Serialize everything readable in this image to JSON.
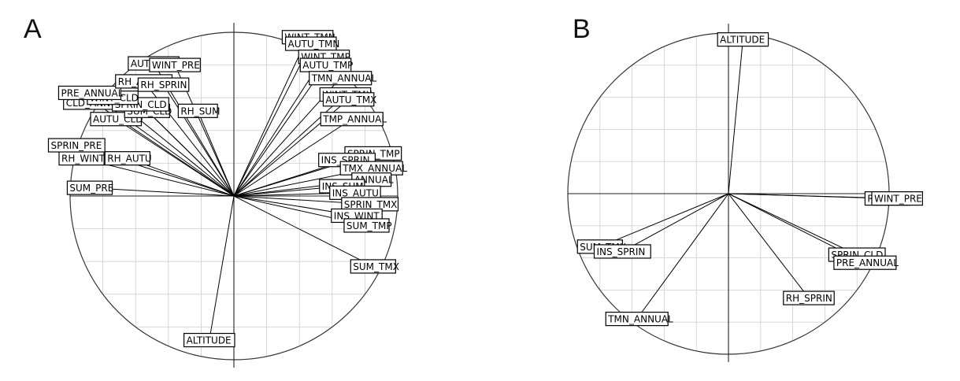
{
  "panels": [
    {
      "letter": "A"
    },
    {
      "letter": "B"
    }
  ],
  "chart_data": [
    {
      "type": "correlation-circle",
      "panel": "A",
      "title": "",
      "xlabel": "",
      "ylabel": "",
      "xlim": [
        -1,
        1
      ],
      "ylim": [
        -1,
        1
      ],
      "grid": true,
      "grid_step": 0.2,
      "vectors": [
        {
          "label": "WINT_TMN",
          "x": 0.45,
          "y": 0.97
        },
        {
          "label": "AUTU_TMN",
          "x": 0.47,
          "y": 0.93
        },
        {
          "label": "WINT_TMP",
          "x": 0.55,
          "y": 0.85
        },
        {
          "label": "AUTU_TMP",
          "x": 0.56,
          "y": 0.8
        },
        {
          "label": "TMN_ANNUAL",
          "x": 0.65,
          "y": 0.72
        },
        {
          "label": "WINT_TMX",
          "x": 0.68,
          "y": 0.62
        },
        {
          "label": "AUTU_TMX",
          "x": 0.7,
          "y": 0.59
        },
        {
          "label": "TMP_ANNUAL",
          "x": 0.72,
          "y": 0.47
        },
        {
          "label": "SPRIN_TMP",
          "x": 0.85,
          "y": 0.26
        },
        {
          "label": "INS_SPRIN",
          "x": 0.69,
          "y": 0.22
        },
        {
          "label": "TMX_ANNUAL",
          "x": 0.84,
          "y": 0.17
        },
        {
          "label": "ANNUAL",
          "x": 0.84,
          "y": 0.1
        },
        {
          "label": "INS_SUM",
          "x": 0.66,
          "y": 0.06
        },
        {
          "label": "INS_AUTU",
          "x": 0.74,
          "y": 0.02
        },
        {
          "label": "SPRIN_TMX",
          "x": 0.83,
          "y": -0.05
        },
        {
          "label": "INS_WINT",
          "x": 0.75,
          "y": -0.12
        },
        {
          "label": "SUM_TMP",
          "x": 0.81,
          "y": -0.18
        },
        {
          "label": "SUM_TMX",
          "x": 0.85,
          "y": -0.43
        },
        {
          "label": "ALTITUDE",
          "x": -0.15,
          "y": -0.88
        },
        {
          "label": "SUM_PRE",
          "x": -0.88,
          "y": 0.05
        },
        {
          "label": "RH_WINT",
          "x": -0.93,
          "y": 0.23
        },
        {
          "label": "RH_AUTU",
          "x": -0.65,
          "y": 0.23
        },
        {
          "label": "SPRIN_PRE",
          "x": -0.96,
          "y": 0.31
        },
        {
          "label": "AUTU_CLD",
          "x": -0.72,
          "y": 0.47
        },
        {
          "label": "SUM_CLD",
          "x": -0.53,
          "y": 0.52
        },
        {
          "label": "CLD_ANNUAL",
          "x": -0.85,
          "y": 0.57
        },
        {
          "label": "SPRIN_CLD",
          "x": -0.57,
          "y": 0.56
        },
        {
          "label": "WINT_CLD",
          "x": -0.74,
          "y": 0.6
        },
        {
          "label": "PRE_ANNUAL",
          "x": -0.88,
          "y": 0.63
        },
        {
          "label": "RH_ANNUAL",
          "x": -0.55,
          "y": 0.7
        },
        {
          "label": "RH_SPRIN",
          "x": -0.43,
          "y": 0.68
        },
        {
          "label": "RH_SUM",
          "x": -0.22,
          "y": 0.52
        },
        {
          "label": "AUTU_PRE",
          "x": -0.49,
          "y": 0.81
        },
        {
          "label": "WINT_PRE",
          "x": -0.36,
          "y": 0.8
        }
      ]
    },
    {
      "type": "correlation-circle",
      "panel": "B",
      "title": "",
      "xlabel": "",
      "ylabel": "",
      "xlim": [
        -1,
        1
      ],
      "ylim": [
        -1,
        1
      ],
      "grid": true,
      "grid_step": 0.2,
      "vectors": [
        {
          "label": "ALTITUDE",
          "x": 0.09,
          "y": 0.96
        },
        {
          "label": "RH_WINT",
          "x": 0.99,
          "y": -0.03
        },
        {
          "label": "WINT_PRE",
          "x": 1.05,
          "y": -0.03
        },
        {
          "label": "SPRIN_CLD",
          "x": 0.8,
          "y": -0.38
        },
        {
          "label": "PRE_ANNUAL",
          "x": 0.85,
          "y": -0.43
        },
        {
          "label": "RH_SPRIN",
          "x": 0.5,
          "y": -0.65
        },
        {
          "label": "TMN_ANNUAL",
          "x": -0.57,
          "y": -0.78
        },
        {
          "label": "SUM_TMX",
          "x": -0.8,
          "y": -0.33
        },
        {
          "label": "INS_SPRIN",
          "x": -0.66,
          "y": -0.36
        }
      ]
    }
  ]
}
